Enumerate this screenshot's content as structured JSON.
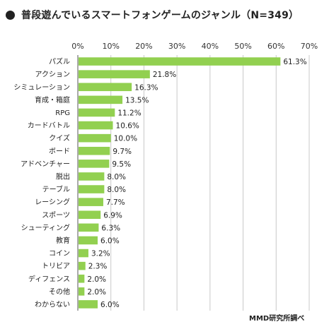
{
  "title": "普段遊んでいるスマートフォンゲームのジャンル（N=349）",
  "source": "MMD研究所調べ",
  "colors": {
    "bar": "#92d050",
    "grid": "#c8c8c8",
    "axis": "#555555"
  },
  "chart_data": {
    "type": "bar",
    "orientation": "horizontal",
    "title": "普段遊んでいるスマートフォンゲームのジャンル（N=349）",
    "xlim": [
      0,
      70
    ],
    "xticks": [
      "0%",
      "10%",
      "20%",
      "30%",
      "40%",
      "50%",
      "60%",
      "70%"
    ],
    "grid": "vertical",
    "categories": [
      "パズル",
      "アクション",
      "シミュレーション",
      "育成・箱庭",
      "RPG",
      "カードバトル",
      "クイズ",
      "ボード",
      "アドベンチャー",
      "脱出",
      "テーブル",
      "レーシング",
      "スポーツ",
      "シューティング",
      "教育",
      "コイン",
      "トリビア",
      "ディフェンス",
      "その他",
      "わからない"
    ],
    "values": [
      61.3,
      21.8,
      16.3,
      13.5,
      11.2,
      10.6,
      10.0,
      9.7,
      9.5,
      8.0,
      8.0,
      7.7,
      6.9,
      6.3,
      6.0,
      3.2,
      2.3,
      2.0,
      2.0,
      6.0
    ],
    "value_labels": [
      "61.3%",
      "21.8%",
      "16.3%",
      "13.5%",
      "11.2%",
      "10.6%",
      "10.0%",
      "9.7%",
      "9.5%",
      "8.0%",
      "8.0%",
      "7.7%",
      "6.9%",
      "6.3%",
      "6.0%",
      "3.2%",
      "2.3%",
      "2.0%",
      "2.0%",
      "6.0%"
    ]
  }
}
